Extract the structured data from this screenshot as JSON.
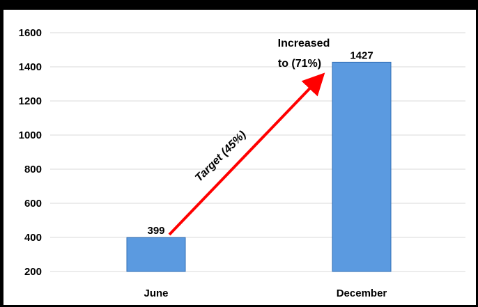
{
  "chart_data": {
    "type": "bar",
    "categories": [
      "June",
      "December"
    ],
    "values": [
      399,
      1427
    ],
    "data_labels": [
      "399",
      "1427"
    ],
    "ylim": [
      200,
      1600
    ],
    "yticks": [
      200,
      400,
      600,
      800,
      1000,
      1200,
      1400,
      1600
    ],
    "ytick_labels": [
      "200",
      "400",
      "600",
      "800",
      "1000",
      "1200",
      "1400",
      "1600"
    ],
    "grid": true,
    "legend": "none",
    "colors": {
      "bar": "#5b9ae0",
      "bar_edge": "#2f6db5",
      "arrow": "#ff0000",
      "grid": "#d9d9d9"
    },
    "annotations": {
      "arrow_label": "Target (45%)",
      "increase_line1": "Increased",
      "increase_line2": "to (71%)"
    }
  }
}
